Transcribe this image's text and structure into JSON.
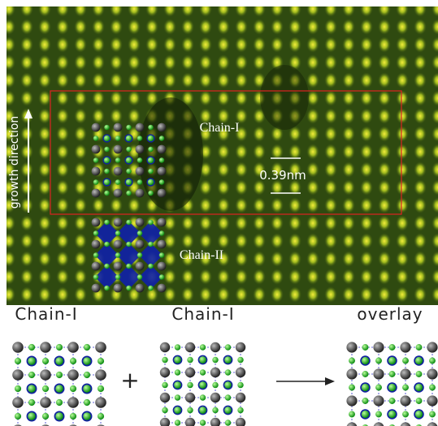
{
  "image": {
    "growth_label": "growth direction",
    "chain_i_label": "Chain-I",
    "spacing_label": "0.39nm",
    "chain_ii_label": "Chain-II"
  },
  "panels": {
    "left_label": "Chain-I",
    "middle_label": "Chain-I",
    "right_label": "overlay",
    "operator": "+"
  }
}
